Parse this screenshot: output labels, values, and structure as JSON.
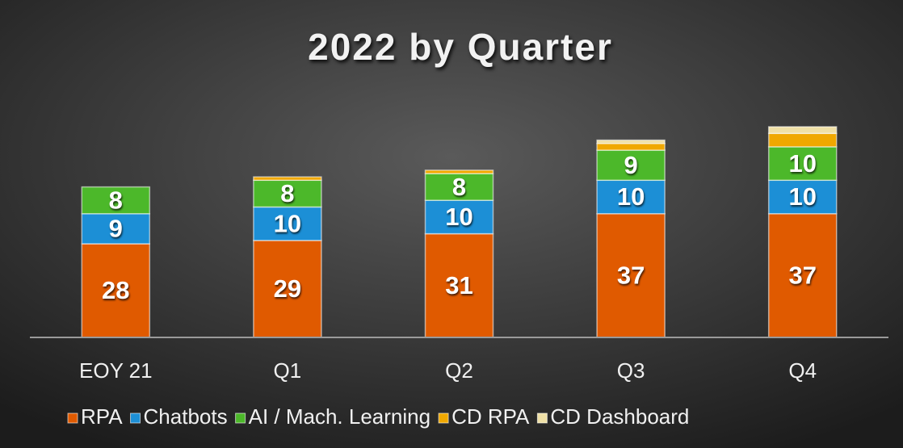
{
  "chart_data": {
    "type": "stacked_bar",
    "title": "2022 by Quarter",
    "categories": [
      "EOY 21",
      "Q1",
      "Q2",
      "Q3",
      "Q4"
    ],
    "series": [
      {
        "name": "RPA",
        "color": "#e05a00",
        "values": [
          28,
          29,
          31,
          37,
          37
        ],
        "data_labels": true
      },
      {
        "name": "Chatbots",
        "color": "#1c8fd6",
        "values": [
          9,
          10,
          10,
          10,
          10
        ],
        "data_labels": true
      },
      {
        "name": "AI / Mach. Learning",
        "color": "#4cb82a",
        "values": [
          8,
          8,
          8,
          9,
          10
        ],
        "data_labels": true
      },
      {
        "name": "CD RPA",
        "color": "#f0a800",
        "values": [
          0,
          1,
          1,
          2,
          4
        ],
        "data_labels": false
      },
      {
        "name": "CD Dashboard",
        "color": "#efe0a6",
        "values": [
          0,
          0,
          0,
          1,
          2
        ],
        "data_labels": false
      }
    ],
    "ylim": [
      0,
      70
    ],
    "legend": "bottom"
  }
}
